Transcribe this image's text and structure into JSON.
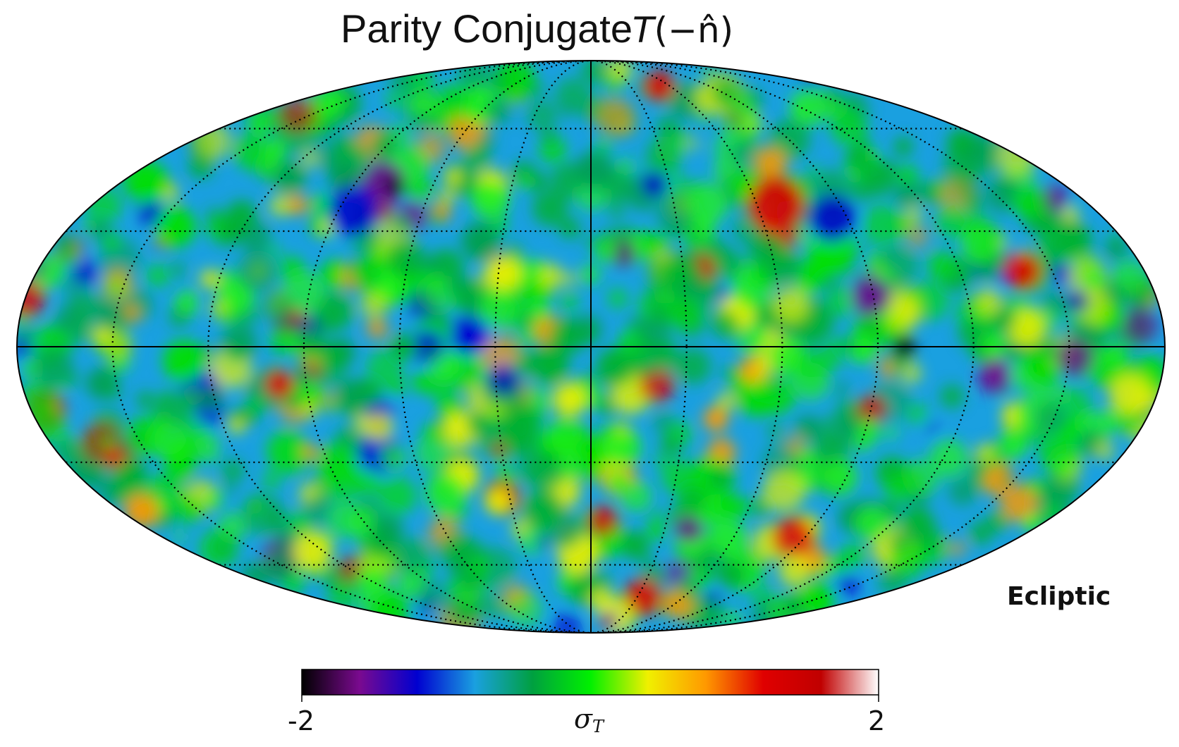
{
  "figure": {
    "title_text": "Parity Conjugate",
    "title_math_var": "T",
    "title_math_arg": "(−n̂)",
    "coordinate_system_label": "Ecliptic"
  },
  "colorbar": {
    "min_label": "-2",
    "max_label": "2",
    "quantity_symbol": "σ",
    "quantity_subscript": "T",
    "colormap_stops": [
      "#000000",
      "#7a0a8f",
      "#0000d0",
      "#1aa0e0",
      "#00a040",
      "#00f000",
      "#f0f000",
      "#ff9900",
      "#e00000",
      "#c00000",
      "#ffffff"
    ]
  },
  "map": {
    "projection": "Mollweide",
    "graticule": "dotted",
    "background_color": "#1aa0e0"
  }
}
